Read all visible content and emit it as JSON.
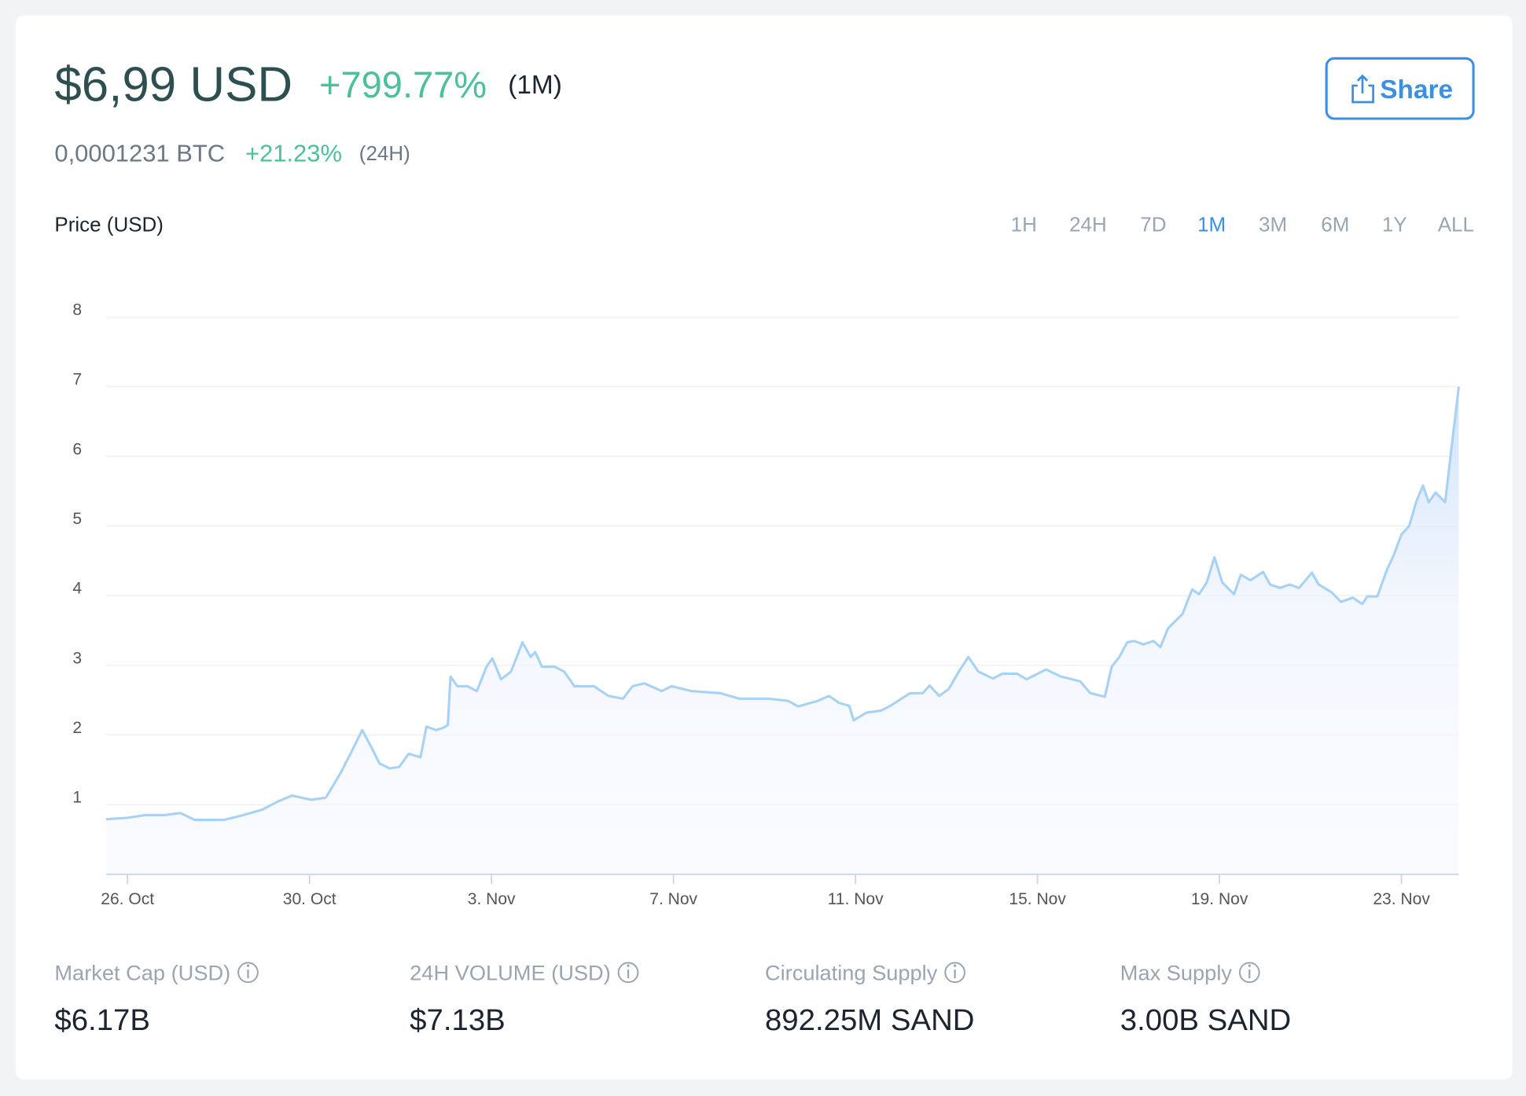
{
  "header": {
    "price": "$6,99 USD",
    "change": "+799.77%",
    "change_period": "(1M)",
    "btc_price": "0,0001231 BTC",
    "btc_change": "+21.23%",
    "btc_period": "(24H)",
    "share_button": "Share"
  },
  "timeframes": [
    "1H",
    "24H",
    "7D",
    "1M",
    "3M",
    "6M",
    "1Y",
    "ALL"
  ],
  "selected_timeframe": "1M",
  "chart_data": {
    "type": "line",
    "title": "Price (USD)",
    "series": [
      {
        "name": "Price",
        "color": "#a8d2f5",
        "x": [
          -0.47,
          -0.02,
          0.41,
          0.83,
          1.16,
          1.48,
          2.12,
          2.55,
          2.97,
          3.29,
          3.61,
          4.04,
          4.36,
          4.68,
          4.9,
          5.16,
          5.33,
          5.54,
          5.76,
          5.97,
          6.18,
          6.44,
          6.57,
          6.78,
          6.93,
          7.04,
          7.1,
          7.25,
          7.47,
          7.68,
          7.89,
          8.02,
          8.21,
          8.43,
          8.68,
          8.86,
          8.96,
          9.11,
          9.39,
          9.6,
          9.82,
          10.25,
          10.57,
          10.89,
          11.1,
          11.36,
          11.74,
          11.96,
          12.39,
          13.03,
          13.45,
          14.1,
          14.52,
          14.74,
          15.17,
          15.42,
          15.64,
          15.86,
          15.96,
          16.24,
          16.56,
          16.77,
          17.2,
          17.48,
          17.63,
          17.84,
          18.05,
          18.27,
          18.48,
          18.7,
          19.02,
          19.23,
          19.55,
          19.76,
          20.19,
          20.51,
          20.94,
          21.16,
          21.48,
          21.63,
          21.8,
          21.97,
          22.12,
          22.33,
          22.55,
          22.7,
          22.87,
          23.19,
          23.4,
          23.55,
          23.72,
          23.89,
          24.06,
          24.32,
          24.47,
          24.68,
          24.96,
          25.11,
          25.33,
          25.54,
          25.75,
          26.03,
          26.18,
          26.46,
          26.67,
          26.93,
          27.14,
          27.25,
          27.47,
          27.68,
          27.83,
          28.0,
          28.17,
          28.32,
          28.47,
          28.6,
          28.75,
          28.96,
          29.11,
          29.26
        ],
        "values": [
          0.79,
          0.81,
          0.85,
          0.85,
          0.88,
          0.78,
          0.78,
          0.85,
          0.93,
          1.04,
          1.13,
          1.07,
          1.1,
          1.45,
          1.73,
          2.07,
          1.86,
          1.59,
          1.52,
          1.54,
          1.73,
          1.68,
          2.12,
          2.07,
          2.1,
          2.14,
          2.84,
          2.7,
          2.7,
          2.63,
          2.98,
          3.1,
          2.8,
          2.91,
          3.33,
          3.12,
          3.19,
          2.98,
          2.98,
          2.91,
          2.7,
          2.7,
          2.56,
          2.52,
          2.7,
          2.74,
          2.63,
          2.7,
          2.63,
          2.6,
          2.52,
          2.52,
          2.49,
          2.41,
          2.49,
          2.56,
          2.46,
          2.42,
          2.21,
          2.32,
          2.35,
          2.42,
          2.6,
          2.6,
          2.71,
          2.56,
          2.66,
          2.91,
          3.12,
          2.91,
          2.81,
          2.88,
          2.88,
          2.8,
          2.94,
          2.84,
          2.77,
          2.6,
          2.55,
          2.98,
          3.12,
          3.33,
          3.35,
          3.3,
          3.35,
          3.26,
          3.53,
          3.74,
          4.09,
          4.02,
          4.19,
          4.55,
          4.19,
          4.02,
          4.3,
          4.22,
          4.34,
          4.16,
          4.11,
          4.16,
          4.11,
          4.33,
          4.16,
          4.05,
          3.91,
          3.97,
          3.88,
          3.99,
          3.99,
          4.37,
          4.58,
          4.88,
          5.0,
          5.34,
          5.58,
          5.34,
          5.48,
          5.34,
          6.18,
          7.0
        ]
      }
    ],
    "xlim": [
      -0.47,
      29.26
    ],
    "xticks": [
      {
        "value": 0,
        "label": "26. Oct"
      },
      {
        "value": 4,
        "label": "30. Oct"
      },
      {
        "value": 8,
        "label": "3. Nov"
      },
      {
        "value": 12,
        "label": "7. Nov"
      },
      {
        "value": 16,
        "label": "11. Nov"
      },
      {
        "value": 20,
        "label": "15. Nov"
      },
      {
        "value": 24,
        "label": "19. Nov"
      },
      {
        "value": 28,
        "label": "23. Nov"
      }
    ],
    "ylim": [
      0,
      8
    ],
    "yticks": [
      1,
      2,
      3,
      4,
      5,
      6,
      7,
      8
    ],
    "grid": true
  },
  "stats": [
    {
      "label": "Market Cap (USD)",
      "value": "$6.17B"
    },
    {
      "label": "24H VOLUME (USD)",
      "value": "$7.13B"
    },
    {
      "label": "Circulating Supply",
      "value": "892.25M SAND"
    },
    {
      "label": "Max Supply",
      "value": "3.00B SAND"
    }
  ]
}
